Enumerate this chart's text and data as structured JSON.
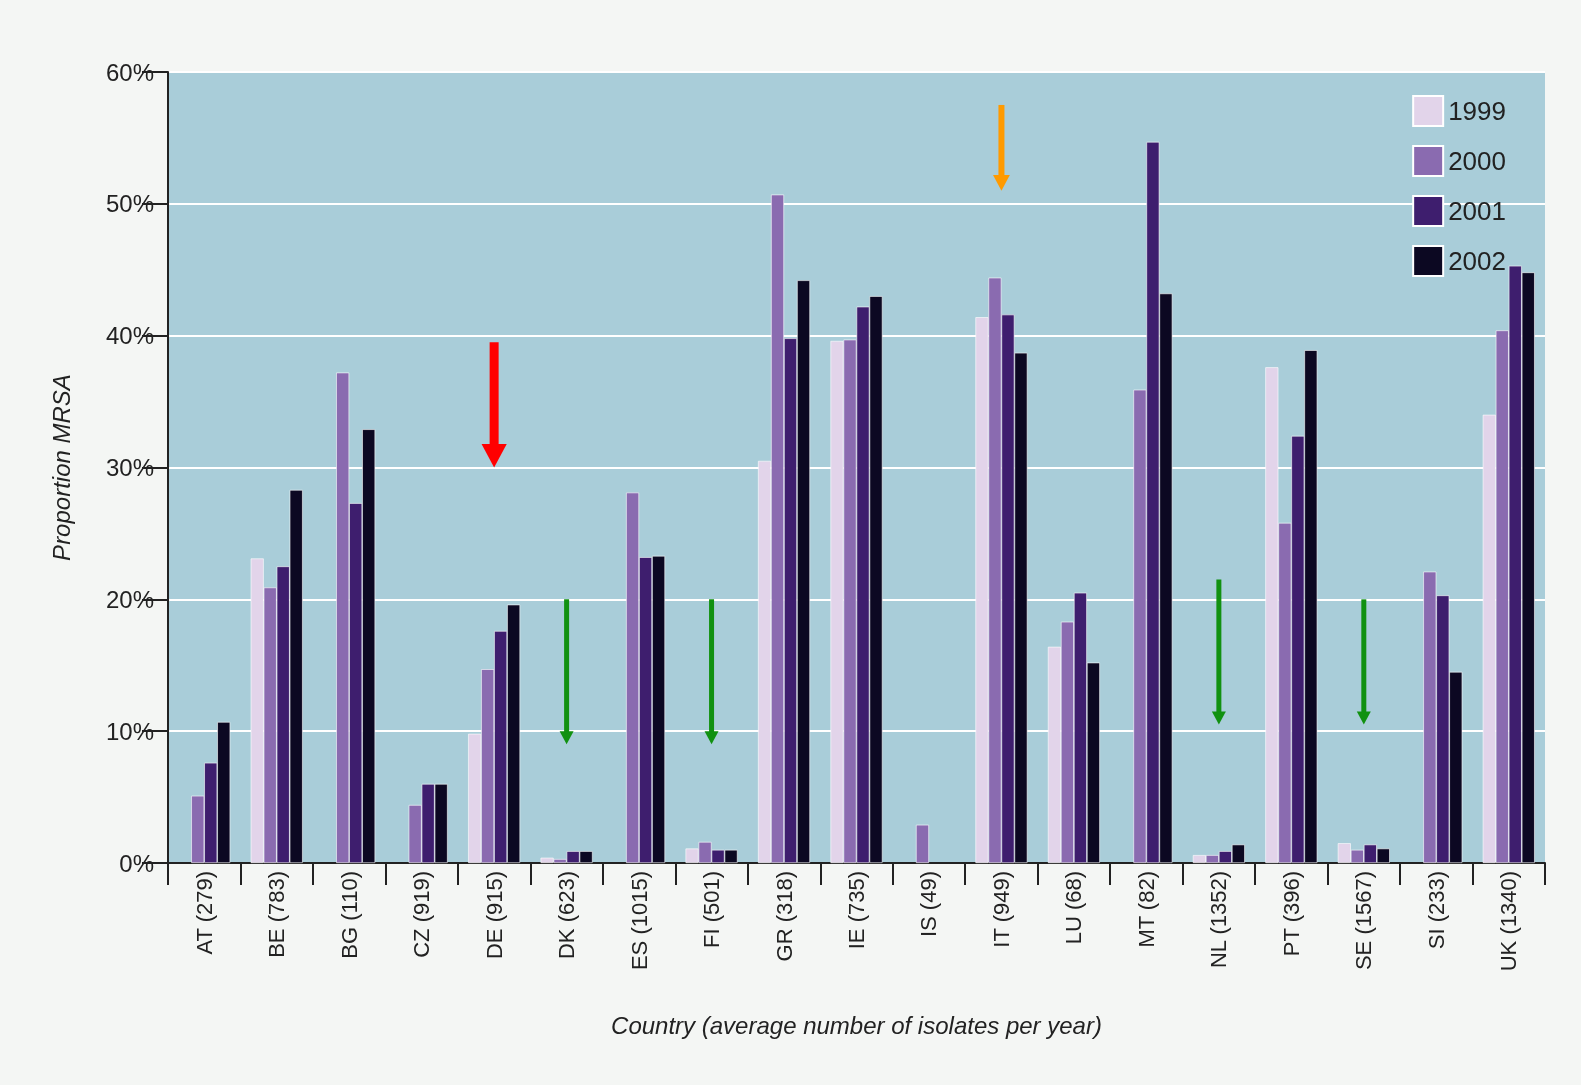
{
  "chart_data": {
    "type": "bar",
    "ylabel": "Proportion MRSA",
    "xlabel": "Country (average number of isolates per year)",
    "categories": [
      "AT (279)",
      "BE (783)",
      "BG (110)",
      "CZ (919)",
      "DE (915)",
      "DK (623)",
      "ES (1015)",
      "FI (501)",
      "GR (318)",
      "IE (735)",
      "IS (49)",
      "IT (949)",
      "LU (68)",
      "MT (82)",
      "NL (1352)",
      "PT (396)",
      "SE (1567)",
      "SI (233)",
      "UK (1340)"
    ],
    "series": [
      {
        "name": "1999",
        "color": "#e2d4ea",
        "values": [
          null,
          23.1,
          null,
          null,
          9.8,
          0.4,
          null,
          1.1,
          30.5,
          39.6,
          null,
          41.4,
          16.4,
          null,
          0.6,
          37.6,
          1.5,
          null,
          34.0
        ]
      },
      {
        "name": "2000",
        "color": "#8a6bb0",
        "values": [
          5.1,
          20.9,
          37.2,
          4.4,
          14.7,
          0.3,
          28.1,
          1.6,
          50.7,
          39.7,
          2.9,
          44.4,
          18.3,
          35.9,
          0.6,
          25.8,
          1.0,
          22.1,
          40.4
        ]
      },
      {
        "name": "2001",
        "color": "#3e1e6e",
        "values": [
          7.6,
          22.5,
          27.3,
          6.0,
          17.6,
          0.9,
          23.2,
          1.0,
          39.8,
          42.2,
          null,
          41.6,
          20.5,
          54.7,
          0.9,
          32.4,
          1.4,
          20.3,
          45.3
        ]
      },
      {
        "name": "2002",
        "color": "#0c0822",
        "values": [
          10.7,
          28.3,
          32.9,
          6.0,
          19.6,
          0.9,
          23.3,
          1.0,
          44.2,
          43.0,
          null,
          38.7,
          15.2,
          43.2,
          1.4,
          38.9,
          1.1,
          14.5,
          44.8
        ]
      }
    ],
    "ylim": [
      0,
      60
    ],
    "yticks": [
      {
        "value": 0,
        "label": "0%"
      },
      {
        "value": 10,
        "label": "10%"
      },
      {
        "value": 20,
        "label": "20%"
      },
      {
        "value": 30,
        "label": "30%"
      },
      {
        "value": 40,
        "label": "40%"
      },
      {
        "value": 50,
        "label": "50%"
      },
      {
        "value": 60,
        "label": "60%"
      }
    ],
    "grid": "y",
    "legend": "top right"
  }
}
